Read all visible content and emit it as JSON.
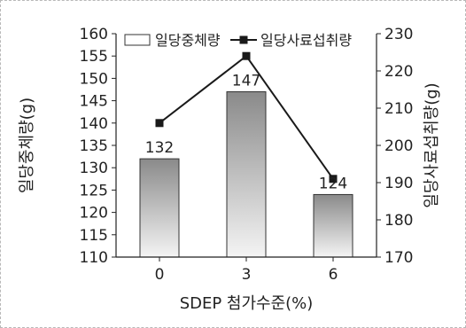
{
  "chart_data": {
    "type": "bar",
    "categories": [
      "0",
      "3",
      "6"
    ],
    "series": [
      {
        "name": "일당중체량",
        "type": "bar",
        "axis": "left",
        "values": [
          132,
          147,
          124
        ]
      },
      {
        "name": "일당사료섭취량",
        "type": "line",
        "axis": "right",
        "values": [
          206,
          224,
          191
        ]
      }
    ],
    "data_labels": [
      "132",
      "147",
      "124"
    ],
    "xlabel": "SDEP 첨가수준(%)",
    "ylabel": "일당중체량(g)",
    "y2label": "일당사료섭취량(g)",
    "ylim": [
      110,
      160
    ],
    "y2lim": [
      170,
      230
    ],
    "yticks": [
      110,
      115,
      120,
      125,
      130,
      135,
      140,
      145,
      150,
      155,
      160
    ],
    "y2ticks": [
      170,
      180,
      190,
      200,
      210,
      220,
      230
    ],
    "legend_position": "top",
    "grid": false,
    "colors": {
      "bar_top": "#8a8a8a",
      "bar_bottom": "#f4f4f4",
      "line": "#1a1a1a",
      "axis": "#222222"
    }
  }
}
